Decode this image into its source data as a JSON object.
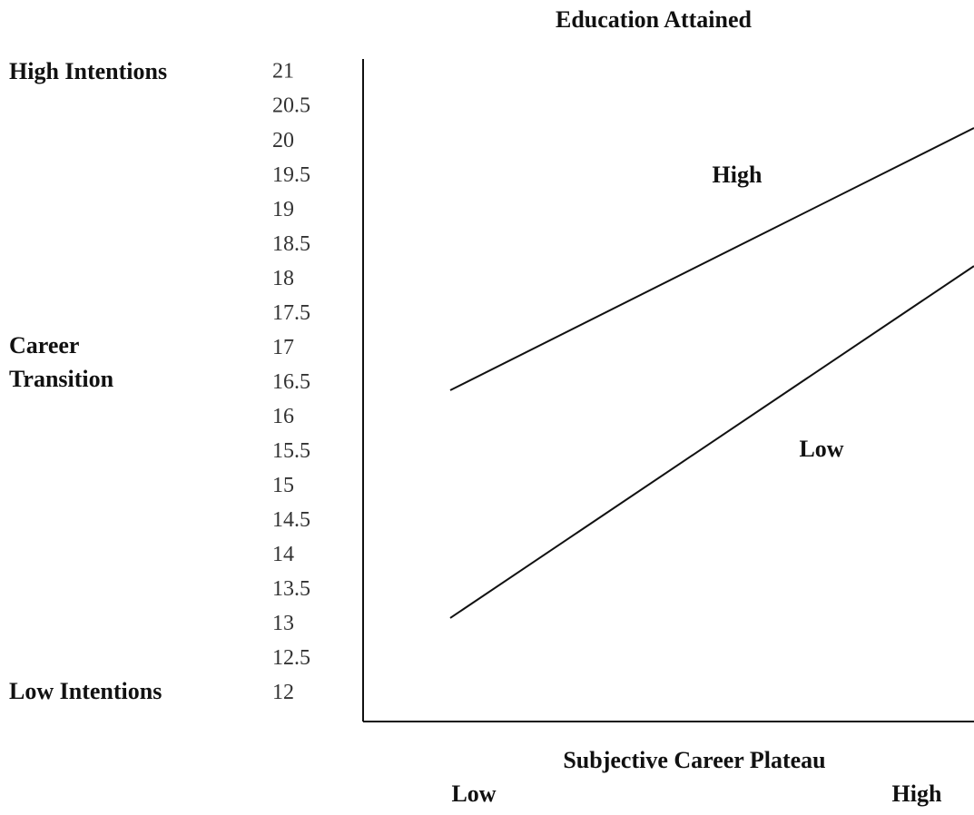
{
  "chart_data": {
    "type": "line",
    "title": "Education Attained",
    "xlabel": "Subjective Career Plateau",
    "ylabel": [
      "Career",
      "Transition"
    ],
    "annotations": [
      "High Intentions",
      "Low Intentions"
    ],
    "categories": [
      "Low",
      "High"
    ],
    "series": [
      {
        "name": "High",
        "color": "#111111",
        "values": [
          16.4,
          20.2
        ]
      },
      {
        "name": "Low",
        "color": "#111111",
        "values": [
          13.1,
          18.2
        ]
      }
    ],
    "ylim": [
      11.6,
      21.2
    ],
    "yticks": [
      21,
      20.5,
      20,
      19.5,
      19,
      18.5,
      18,
      17.5,
      17,
      16.5,
      16,
      15.5,
      15,
      14.5,
      14,
      13.5,
      13,
      12.5,
      12
    ],
    "grid": false
  }
}
